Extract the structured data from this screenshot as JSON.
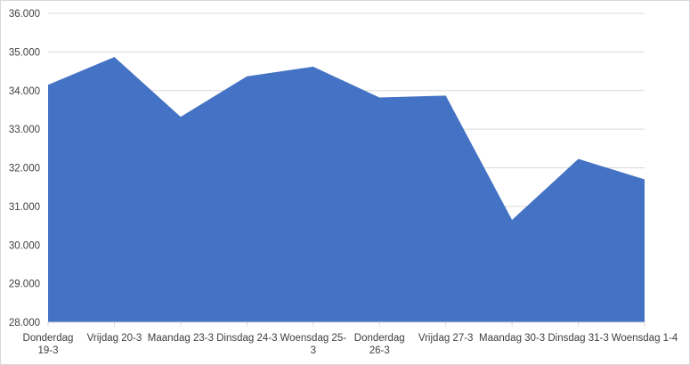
{
  "chart_data": {
    "type": "area",
    "title": "",
    "xlabel": "",
    "ylabel": "",
    "categories": [
      [
        "Donderdag",
        "19-3"
      ],
      [
        "Vrijdag 20-3"
      ],
      [
        "Maandag 23-3"
      ],
      [
        "Dinsdag 24-3"
      ],
      [
        "Woensdag 25-",
        "3"
      ],
      [
        "Donderdag",
        "26-3"
      ],
      [
        "Vrijdag 27-3"
      ],
      [
        "Maandag 30-3"
      ],
      [
        "Dinsdag 31-3"
      ],
      [
        "Woensdag 1-4"
      ]
    ],
    "series": [
      {
        "values": [
          34150,
          34870,
          33320,
          34370,
          34620,
          33820,
          33870,
          30650,
          32230,
          31700
        ],
        "color": "#4472c4"
      }
    ],
    "ylim": [
      28000,
      36000
    ],
    "yticks": [
      "28.000",
      "29.000",
      "30.000",
      "31.000",
      "32.000",
      "33.000",
      "34.000",
      "35.000",
      "36.000"
    ],
    "grid": true,
    "grid_color": "#d9d9d9",
    "legend": "none"
  }
}
